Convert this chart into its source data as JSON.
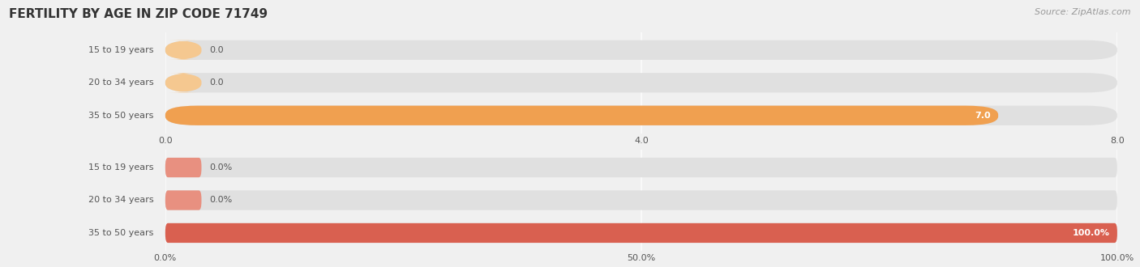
{
  "title": "FERTILITY BY AGE IN ZIP CODE 71749",
  "source": "Source: ZipAtlas.com",
  "top_chart": {
    "categories": [
      "15 to 19 years",
      "20 to 34 years",
      "35 to 50 years"
    ],
    "values": [
      0.0,
      0.0,
      7.0
    ],
    "xlim": [
      0,
      8.0
    ],
    "xticks": [
      0.0,
      4.0,
      8.0
    ],
    "xtick_labels": [
      "0.0",
      "4.0",
      "8.0"
    ],
    "bar_color": "#F0A050",
    "bar_color_zero": "#F5C890",
    "value_labels": [
      "0.0",
      "0.0",
      "7.0"
    ]
  },
  "bottom_chart": {
    "categories": [
      "15 to 19 years",
      "20 to 34 years",
      "35 to 50 years"
    ],
    "values": [
      0.0,
      0.0,
      100.0
    ],
    "xlim": [
      0,
      100.0
    ],
    "xticks": [
      0.0,
      50.0,
      100.0
    ],
    "xtick_labels": [
      "0.0%",
      "50.0%",
      "100.0%"
    ],
    "bar_color": "#D96050",
    "bar_color_zero": "#E89080",
    "value_labels": [
      "0.0%",
      "0.0%",
      "100.0%"
    ]
  },
  "bg_color": "#f0f0f0",
  "bar_bg_color": "#e0e0e0",
  "label_color": "#555555",
  "title_color": "#333333",
  "source_color": "#999999",
  "title_fontsize": 11,
  "source_fontsize": 8,
  "tick_fontsize": 8,
  "label_fontsize": 8,
  "value_fontsize": 8
}
